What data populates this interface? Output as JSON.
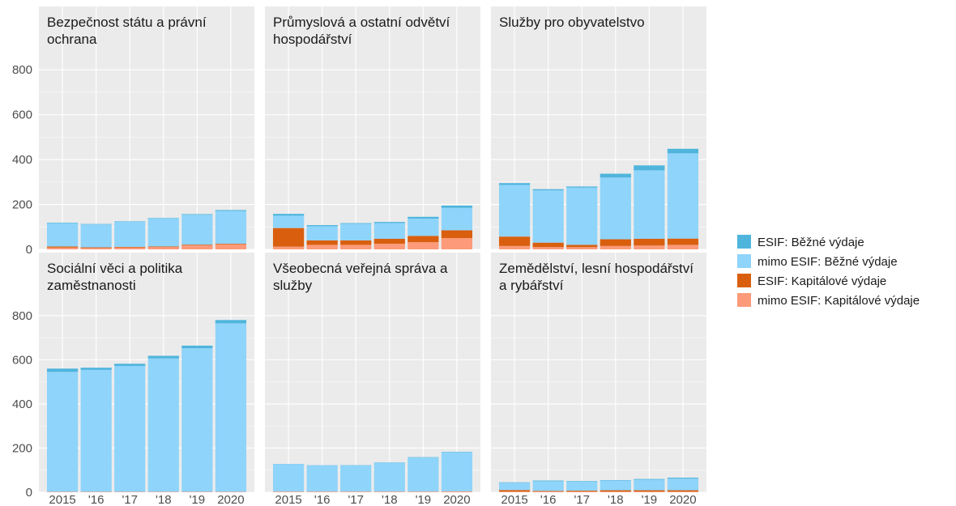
{
  "chart_data": {
    "type": "bar",
    "stacked": true,
    "categories": [
      "2015",
      "'16",
      "'17",
      "'18",
      "'19",
      "2020"
    ],
    "ylim": [
      0,
      880
    ],
    "yticks": [
      0,
      200,
      400,
      600,
      800
    ],
    "grid": true,
    "legend_placement": "right",
    "series": [
      {
        "name": "mimo ESIF: Kapitálové výdaje",
        "color": "#fc9a7a"
      },
      {
        "name": "ESIF: Kapitálové výdaje",
        "color": "#d95f0e"
      },
      {
        "name": "mimo ESIF: Běžné výdaje",
        "color": "#8fd4fa"
      },
      {
        "name": "ESIF: Běžné výdaje",
        "color": "#4fb5dd"
      }
    ],
    "legend_order": [
      3,
      2,
      1,
      0
    ],
    "panels": [
      {
        "title": [
          "Bezpečnost státu a právní",
          "ochrana"
        ],
        "values": [
          [
            8,
            6,
            8,
            10,
            18,
            22
          ],
          [
            5,
            3,
            3,
            3,
            3,
            3
          ],
          [
            104,
            102,
            112,
            125,
            133,
            146
          ],
          [
            2,
            2,
            2,
            2,
            3,
            4
          ]
        ]
      },
      {
        "title": [
          "Průmyslová a ostatní odvětví",
          "hospodářství"
        ],
        "values": [
          [
            12,
            20,
            20,
            25,
            32,
            50
          ],
          [
            83,
            20,
            20,
            22,
            28,
            35
          ],
          [
            55,
            63,
            74,
            70,
            77,
            100
          ],
          [
            8,
            5,
            3,
            5,
            8,
            10
          ]
        ]
      },
      {
        "title": [
          "Služby pro obyvatelstvo"
        ],
        "values": [
          [
            15,
            10,
            10,
            15,
            17,
            20
          ],
          [
            42,
            20,
            10,
            30,
            30,
            28
          ],
          [
            230,
            233,
            255,
            275,
            305,
            380
          ],
          [
            8,
            5,
            5,
            17,
            22,
            20
          ]
        ]
      },
      {
        "title": [
          "Sociální věci a politika",
          "zaměstnanosti"
        ],
        "values": [
          [
            2,
            2,
            2,
            2,
            2,
            2
          ],
          [
            0,
            0,
            0,
            0,
            0,
            0
          ],
          [
            543,
            552,
            570,
            604,
            650,
            763
          ],
          [
            15,
            10,
            10,
            12,
            12,
            15
          ]
        ]
      },
      {
        "title": [
          "Všeobecná veřejná správa a",
          "služby"
        ],
        "values": [
          [
            3,
            3,
            3,
            3,
            3,
            4
          ],
          [
            0,
            0,
            0,
            0,
            0,
            0
          ],
          [
            124,
            118,
            119,
            131,
            154,
            177
          ],
          [
            1,
            1,
            1,
            1,
            2,
            2
          ]
        ]
      },
      {
        "title": [
          "Zemědělství, lesní hospodářství",
          "a rybářství"
        ],
        "values": [
          [
            3,
            3,
            3,
            3,
            3,
            3
          ],
          [
            7,
            3,
            4,
            6,
            6,
            6
          ],
          [
            33,
            44,
            42,
            44,
            48,
            53
          ],
          [
            2,
            3,
            2,
            2,
            3,
            4
          ]
        ]
      }
    ]
  }
}
